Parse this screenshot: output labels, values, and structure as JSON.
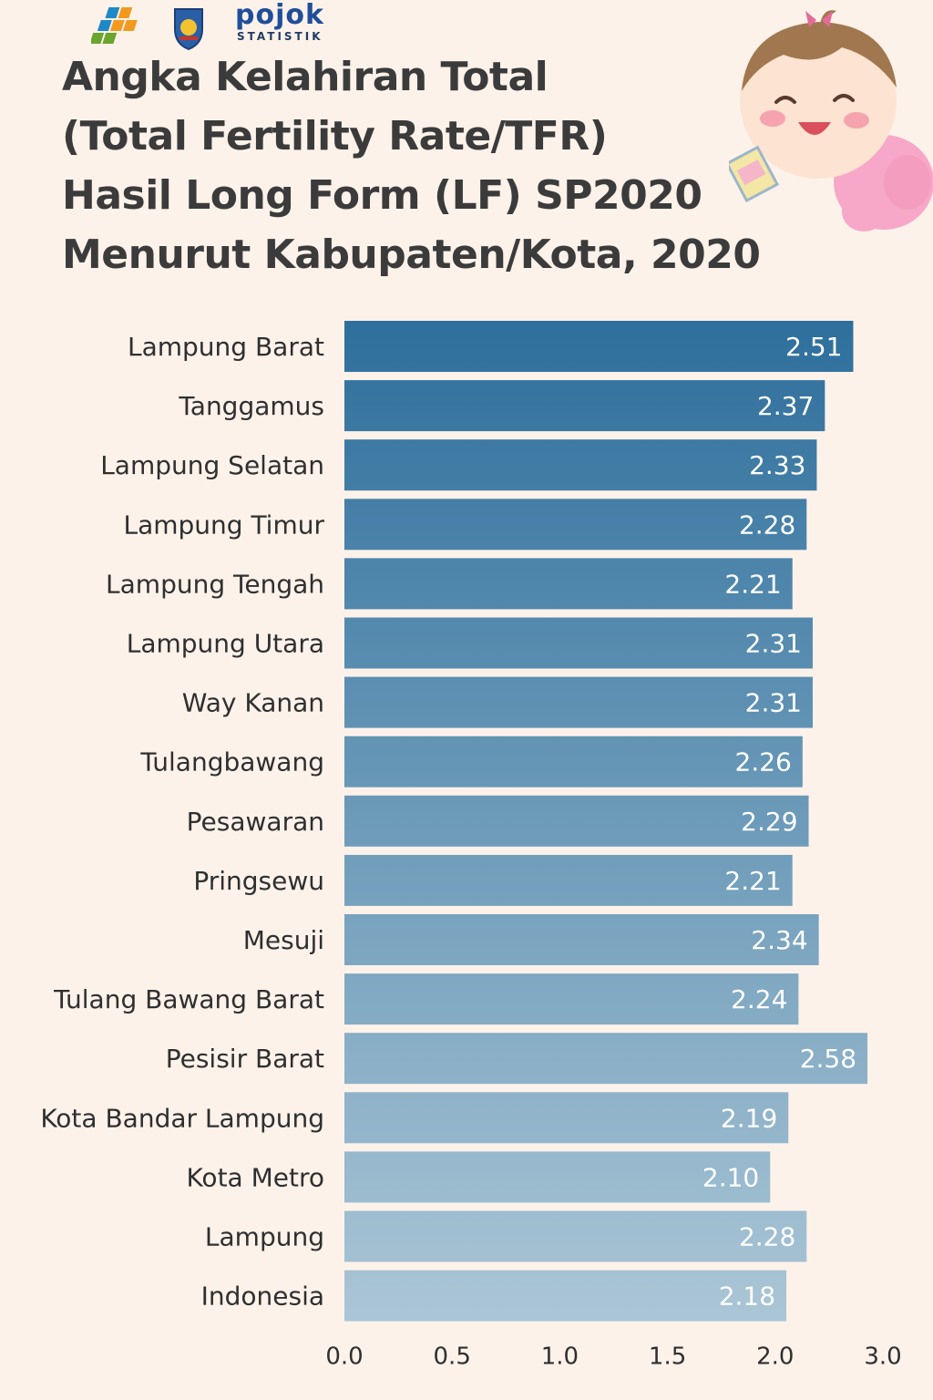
{
  "header": {
    "logo_text": "pojok",
    "logo_subtext": "STATISTIK",
    "title_lines": [
      "Angka Kelahiran Total",
      "(Total Fertility Rate/TFR)",
      "Hasil Long Form (LF) SP2020",
      "Menurut Kabupaten/Kota, 2020"
    ]
  },
  "chart_data": {
    "type": "bar",
    "orientation": "horizontal",
    "categories": [
      "Lampung Barat",
      "Tanggamus",
      "Lampung Selatan",
      "Lampung Timur",
      "Lampung Tengah",
      "Lampung Utara",
      "Way Kanan",
      "Tulangbawang",
      "Pesawaran",
      "Pringsewu",
      "Mesuji",
      "Tulang Bawang Barat",
      "Pesisir Barat",
      "Kota Bandar Lampung",
      "Kota Metro",
      "Lampung",
      "Indonesia"
    ],
    "values": [
      2.51,
      2.37,
      2.33,
      2.28,
      2.21,
      2.31,
      2.31,
      2.26,
      2.29,
      2.21,
      2.34,
      2.24,
      2.58,
      2.19,
      2.1,
      2.28,
      2.18
    ],
    "value_labels": [
      "2.51",
      "2.37",
      "2.33",
      "2.28",
      "2.21",
      "2.31",
      "2.31",
      "2.26",
      "2.29",
      "2.21",
      "2.34",
      "2.24",
      "2.58",
      "2.19",
      "2.10",
      "2.28",
      "2.18"
    ],
    "x_ticks": [
      "0.0",
      "0.5",
      "1.0",
      "1.5",
      "2.0",
      "3.0"
    ],
    "grid": false,
    "legend": "none",
    "colors": {
      "bar_dark": "#2e6f9c",
      "bar_light": "#abc6d6",
      "value_text": "#ffffff"
    }
  }
}
